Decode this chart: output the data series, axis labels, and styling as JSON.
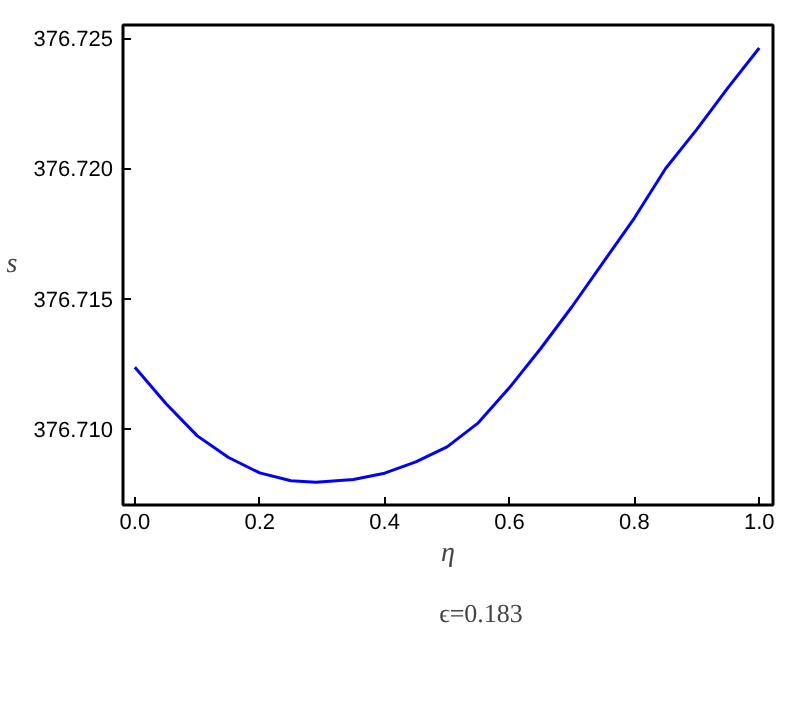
{
  "chart_data": {
    "type": "line",
    "xlabel": "η",
    "ylabel": "s",
    "x": [
      0.0,
      0.05,
      0.1,
      0.15,
      0.2,
      0.25,
      0.29,
      0.35,
      0.4,
      0.45,
      0.5,
      0.55,
      0.6,
      0.65,
      0.7,
      0.75,
      0.8,
      0.85,
      0.9,
      0.95,
      1.0
    ],
    "series": [
      {
        "name": "ϵ=0.183",
        "color": "#0000ff",
        "values": [
          376.71238,
          376.71098,
          376.70975,
          376.70892,
          376.70833,
          376.70803,
          376.70797,
          376.70808,
          376.70832,
          376.70875,
          376.70933,
          376.71025,
          376.7116,
          376.7131,
          376.7147,
          376.7164,
          376.7181,
          376.72,
          376.7215,
          376.7231,
          376.72462
        ]
      }
    ],
    "xlim": [
      -0.019,
      1.022
    ],
    "ylim": [
      376.7071,
      376.7255
    ],
    "xticks": [
      {
        "value": 0,
        "label": "0.0"
      },
      {
        "value": 0.2,
        "label": "0.2"
      },
      {
        "value": 0.4,
        "label": "0.4"
      },
      {
        "value": 0.6,
        "label": "0.6"
      },
      {
        "value": 0.8,
        "label": "0.8"
      },
      {
        "value": 1,
        "label": "1.0"
      }
    ],
    "yticks": [
      {
        "value": 376.71,
        "label": "376.710"
      },
      {
        "value": 376.715,
        "label": "376.715"
      },
      {
        "value": 376.72,
        "label": "376.720"
      },
      {
        "value": 376.725,
        "label": "376.725"
      }
    ],
    "legend": "bottom",
    "grid": false,
    "marker": "none",
    "line_style": "solid"
  }
}
